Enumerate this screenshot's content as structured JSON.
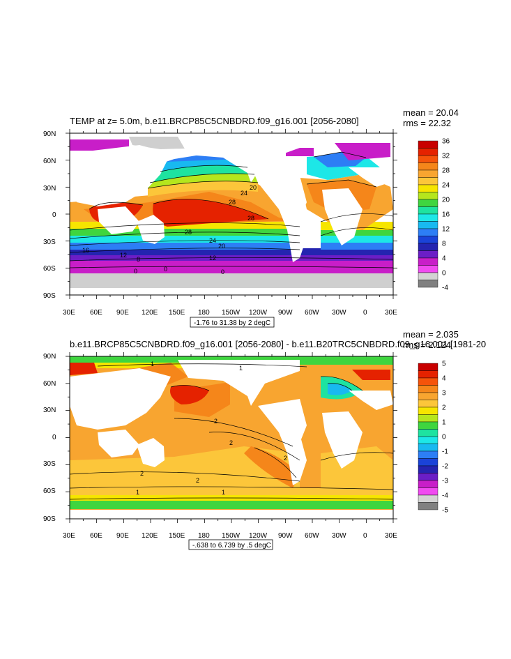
{
  "axes": {
    "lat_labels": [
      "90N",
      "60N",
      "30N",
      "0",
      "30S",
      "60S",
      "90S"
    ],
    "lon_labels": [
      "30E",
      "60E",
      "90E",
      "120E",
      "150E",
      "180",
      "150W",
      "120W",
      "90W",
      "60W",
      "30W",
      "0",
      "30E"
    ]
  },
  "panels": [
    {
      "title": "TEMP at z=   5.0m, b.e11.BRCP85C5CNBDRD.f09_g16.001 [2056-2080]",
      "mean": "mean = 20.04",
      "rms": "rms = 22.32",
      "caption": "-1.76 to 31.38 by 2 degC",
      "colorbar": {
        "labels": [
          "36",
          "32",
          "28",
          "24",
          "20",
          "16",
          "12",
          "8",
          "4",
          "0",
          "-4"
        ],
        "colors": [
          "#c80000",
          "#e52200",
          "#f5530a",
          "#f5861a",
          "#f8a530",
          "#fcc63a",
          "#f6e500",
          "#b5e61d",
          "#3fd53f",
          "#1ee3a0",
          "#1de7e7",
          "#18b9f0",
          "#2d7ef5",
          "#1a43d8",
          "#2424b0",
          "#6b1ec6",
          "#c81ec8",
          "#f04af0",
          "#d3d3d3",
          "#808080"
        ]
      },
      "contour_labels": [
        "28",
        "28",
        "28",
        "24",
        "24",
        "20",
        "20",
        "16",
        "12",
        "12",
        "8",
        "0",
        "0",
        "0"
      ]
    },
    {
      "title": "b.e11.BRCP85C5CNBDRD.f09_g16.001 [2056-2080] - b.e11.B20TRC5CNBDRD.f09_g16.001 [1981-20",
      "mean": "mean = 2.035",
      "rms": "rms = 2.124",
      "caption": "-.638 to 6.739 by .5 degC",
      "colorbar": {
        "labels": [
          "5",
          "4",
          "3",
          "2",
          "1",
          "0",
          "-1",
          "-2",
          "-3",
          "-4",
          "-5"
        ],
        "colors": [
          "#c80000",
          "#e52200",
          "#f5530a",
          "#f5861a",
          "#f8a530",
          "#fcc63a",
          "#f6e500",
          "#b5e61d",
          "#3fd53f",
          "#1ee3a0",
          "#1de7e7",
          "#18b9f0",
          "#2d7ef5",
          "#1a43d8",
          "#2424b0",
          "#6b1ec6",
          "#c81ec8",
          "#f04af0",
          "#d3d3d3",
          "#808080"
        ]
      },
      "contour_labels": [
        "1",
        "1",
        "2",
        "2",
        "2",
        "2",
        "2",
        "1",
        "1"
      ]
    }
  ]
}
